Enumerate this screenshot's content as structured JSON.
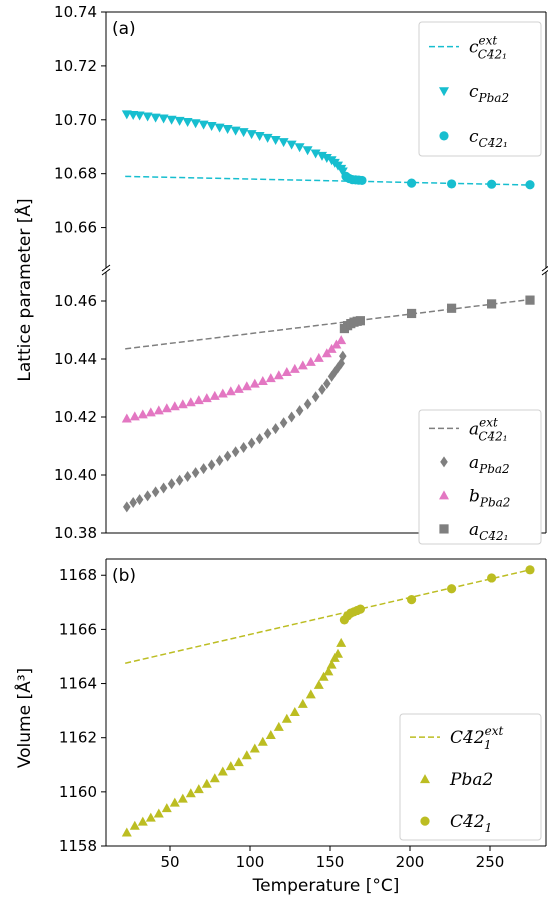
{
  "figure": {
    "ylabel_top": "Lattice parameter [Å]",
    "xlabel": "Temperature [°C]",
    "ylabel_bottom": "Volume [Å³]"
  },
  "chart_data": [
    {
      "type": "scatter",
      "panel": "(a)",
      "segment": "upper",
      "xlim": [
        10,
        285
      ],
      "ylim": [
        10.645,
        10.74
      ],
      "yticks": [
        "10.66",
        "10.68",
        "10.70",
        "10.72",
        "10.74"
      ],
      "legend_placement": "top-right",
      "colors": {
        "cyan": "#17becf"
      },
      "series": [
        {
          "name": "c_C4̄2₁^ext",
          "name_main": "c",
          "name_sub": "C4̄2₁",
          "name_sup": "ext",
          "style": "dashed",
          "color": "#17becf",
          "x": [
            22,
            275
          ],
          "y": [
            10.679,
            10.6758
          ]
        },
        {
          "name": "c_Pba2",
          "name_main": "c",
          "name_sub": "Pba2",
          "name_sup": "",
          "style": "triangle-down",
          "color": "#17becf",
          "x": [
            23,
            27,
            31,
            36,
            41,
            46,
            51,
            56,
            61,
            66,
            71,
            76,
            81,
            86,
            91,
            96,
            101,
            106,
            111,
            116,
            121,
            126,
            131,
            136,
            141,
            145,
            148,
            151,
            153,
            155,
            157,
            158
          ],
          "y": [
            10.702,
            10.7018,
            10.7016,
            10.7012,
            10.7008,
            10.7005,
            10.7,
            10.6996,
            10.6992,
            10.6987,
            10.6982,
            10.6977,
            10.6971,
            10.6966,
            10.696,
            10.6954,
            10.6947,
            10.694,
            10.6933,
            10.6925,
            10.6917,
            10.6908,
            10.6898,
            10.6887,
            10.6875,
            10.6866,
            10.6858,
            10.685,
            10.684,
            10.683,
            10.6818,
            10.6808
          ]
        },
        {
          "name": "c_C4̄2₁",
          "name_main": "c",
          "name_sub": "C4̄2₁",
          "name_sup": "",
          "style": "circle",
          "color": "#17becf",
          "x": [
            160,
            162,
            164,
            166,
            168,
            170,
            201,
            226,
            251,
            275
          ],
          "y": [
            10.679,
            10.6782,
            10.6778,
            10.6777,
            10.6776,
            10.6775,
            10.6765,
            10.6762,
            10.6761,
            10.6759
          ]
        }
      ]
    },
    {
      "type": "scatter",
      "segment": "lower",
      "xlim": [
        10,
        285
      ],
      "ylim": [
        10.38,
        10.47
      ],
      "yticks": [
        "10.38",
        "10.40",
        "10.42",
        "10.44",
        "10.46"
      ],
      "legend_placement": "bottom-right",
      "colors": {
        "gray": "#7f7f7f",
        "pink": "#e377c2"
      },
      "series": [
        {
          "name": "a_C4̄2₁^ext",
          "name_main": "a",
          "name_sub": "C4̄2₁",
          "name_sup": "ext",
          "style": "dashed",
          "color": "#7f7f7f",
          "x": [
            22,
            275
          ],
          "y": [
            10.4435,
            10.4605
          ]
        },
        {
          "name": "a_Pba2",
          "name_main": "a",
          "name_sub": "Pba2",
          "name_sup": "",
          "style": "diamond",
          "color": "#7f7f7f",
          "x": [
            23,
            27,
            31,
            36,
            41,
            46,
            51,
            56,
            61,
            66,
            71,
            76,
            81,
            86,
            91,
            96,
            101,
            106,
            111,
            116,
            121,
            126,
            131,
            136,
            141,
            145,
            148,
            151,
            153,
            155,
            157,
            158
          ],
          "y": [
            10.389,
            10.3905,
            10.3915,
            10.3928,
            10.3942,
            10.3955,
            10.397,
            10.3982,
            10.3995,
            10.4008,
            10.4022,
            10.4035,
            10.405,
            10.4065,
            10.408,
            10.4095,
            10.411,
            10.4125,
            10.4143,
            10.416,
            10.418,
            10.42,
            10.4222,
            10.4245,
            10.427,
            10.4295,
            10.4315,
            10.434,
            10.4355,
            10.437,
            10.4385,
            10.441
          ]
        },
        {
          "name": "b_Pba2",
          "name_main": "b",
          "name_sub": "Pba2",
          "name_sup": "",
          "style": "triangle-up",
          "color": "#e377c2",
          "x": [
            23,
            28,
            33,
            38,
            43,
            48,
            53,
            58,
            63,
            68,
            73,
            78,
            83,
            88,
            93,
            98,
            103,
            108,
            113,
            118,
            123,
            128,
            133,
            138,
            143,
            148,
            151,
            154,
            157
          ],
          "y": [
            10.4195,
            10.4202,
            10.4209,
            10.4216,
            10.4223,
            10.423,
            10.4237,
            10.4244,
            10.4251,
            10.4258,
            10.4265,
            10.4273,
            10.4281,
            10.4289,
            10.4297,
            10.4306,
            10.4315,
            10.4324,
            10.4334,
            10.4344,
            10.4355,
            10.4366,
            10.4378,
            10.439,
            10.4404,
            10.442,
            10.4435,
            10.445,
            10.4465
          ]
        },
        {
          "name": "a_C4̄2₁",
          "name_main": "a",
          "name_sub": "C4̄2₁",
          "name_sup": "",
          "style": "square",
          "color": "#7f7f7f",
          "x": [
            159,
            161,
            163,
            165,
            167,
            169,
            201,
            226,
            251,
            275
          ],
          "y": [
            10.4505,
            10.4515,
            10.4522,
            10.4527,
            10.453,
            10.4532,
            10.4557,
            10.4575,
            10.459,
            10.4603
          ]
        }
      ]
    },
    {
      "type": "scatter",
      "panel": "(b)",
      "xlim": [
        10,
        285
      ],
      "ylim": [
        1158,
        1168.6
      ],
      "xticks": [
        "50",
        "100",
        "150",
        "200",
        "250"
      ],
      "yticks": [
        "1158",
        "1160",
        "1162",
        "1164",
        "1166",
        "1168"
      ],
      "xlabel": "Temperature [°C]",
      "ylabel": "Volume [Å³]",
      "legend_placement": "bottom-right",
      "colors": {
        "olive": "#bcbd22"
      },
      "series": [
        {
          "name": "C4̄2₁^ext",
          "name_main": "C4̄2",
          "name_sub": "1",
          "name_sup": "ext",
          "style": "dashed",
          "color": "#bcbd22",
          "x": [
            22,
            275
          ],
          "y": [
            1164.75,
            1168.2
          ]
        },
        {
          "name": "Pba2",
          "name_main": "Pba2",
          "name_sub": "",
          "name_sup": "",
          "style": "triangle-up",
          "color": "#bcbd22",
          "x": [
            23,
            28,
            33,
            38,
            43,
            48,
            53,
            58,
            63,
            68,
            73,
            78,
            83,
            88,
            93,
            98,
            103,
            108,
            113,
            118,
            123,
            128,
            133,
            138,
            143,
            146,
            149,
            151,
            153,
            155,
            157
          ],
          "y": [
            1158.5,
            1158.75,
            1158.9,
            1159.05,
            1159.2,
            1159.4,
            1159.6,
            1159.75,
            1159.95,
            1160.1,
            1160.3,
            1160.5,
            1160.75,
            1160.95,
            1161.1,
            1161.35,
            1161.6,
            1161.85,
            1162.1,
            1162.4,
            1162.7,
            1162.95,
            1163.25,
            1163.6,
            1163.95,
            1164.25,
            1164.45,
            1164.7,
            1164.95,
            1165.1,
            1165.5
          ]
        },
        {
          "name": "C4̄2₁",
          "name_main": "C4̄2",
          "name_sub": "1",
          "name_sup": "",
          "style": "circle",
          "color": "#bcbd22",
          "x": [
            159,
            161,
            163,
            165,
            167,
            169,
            201,
            226,
            251,
            275
          ],
          "y": [
            1166.35,
            1166.5,
            1166.6,
            1166.65,
            1166.7,
            1166.75,
            1167.1,
            1167.5,
            1167.9,
            1168.2
          ]
        }
      ]
    }
  ]
}
